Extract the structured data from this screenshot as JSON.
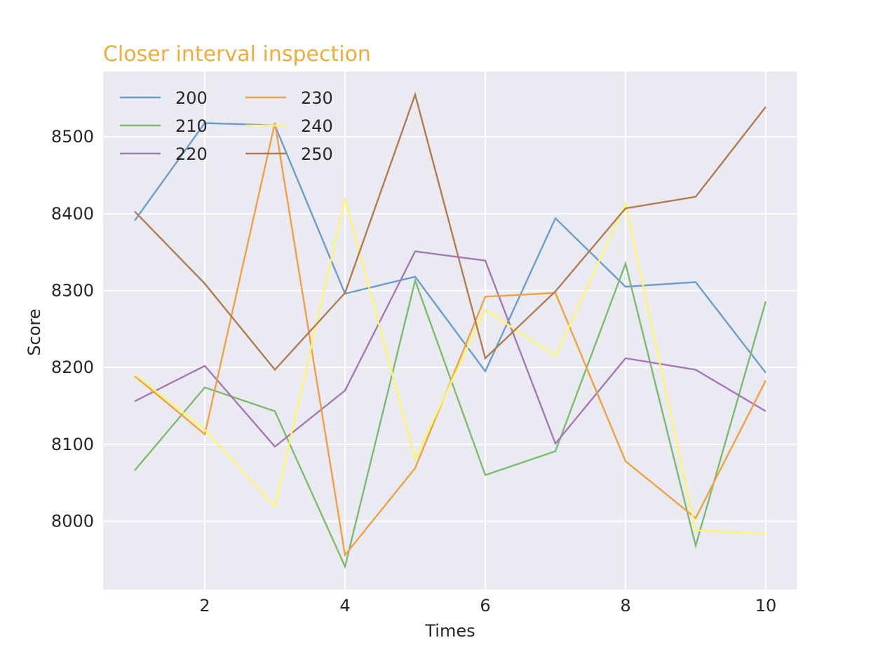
{
  "chart_data": {
    "type": "line",
    "title": "Closer interval inspection",
    "xlabel": "Times",
    "ylabel": "Score",
    "x": [
      1,
      2,
      3,
      4,
      5,
      6,
      7,
      8,
      9,
      10
    ],
    "xticks": [
      2,
      4,
      6,
      8,
      10
    ],
    "yticks": [
      8000,
      8100,
      8200,
      8300,
      8400,
      8500
    ],
    "xlim": [
      0.55,
      10.45
    ],
    "ylim": [
      7911,
      8585
    ],
    "grid": true,
    "legend": {
      "placement": "top-left",
      "columns": 2
    },
    "colors": {
      "title": "#f0ac38",
      "plot_background": "#eaeaf2",
      "grid": "#ffffff"
    },
    "series": [
      {
        "name": "200",
        "color": "#6a9ec8",
        "values": [
          8391,
          8518,
          8515,
          8296,
          8318,
          8195,
          8394,
          8305,
          8311,
          8193
        ]
      },
      {
        "name": "210",
        "color": "#7dbb6c",
        "values": [
          8066,
          8174,
          8143,
          7941,
          8313,
          8060,
          8091,
          8335,
          7968,
          8286
        ]
      },
      {
        "name": "220",
        "color": "#a676b6",
        "values": [
          8156,
          8202,
          8097,
          8170,
          8351,
          8339,
          8101,
          8212,
          8197,
          8143
        ]
      },
      {
        "name": "230",
        "color": "#f0a040",
        "values": [
          8189,
          8113,
          8518,
          7956,
          8069,
          8292,
          8297,
          8078,
          8004,
          8183
        ]
      },
      {
        "name": "240",
        "color": "#fdf56b",
        "values": [
          8191,
          8119,
          8019,
          8420,
          8081,
          8275,
          8215,
          8413,
          7988,
          7984
        ]
      },
      {
        "name": "250",
        "color": "#b37a50",
        "values": [
          8403,
          8309,
          8197,
          8297,
          8555,
          8212,
          8299,
          8407,
          8422,
          8539
        ]
      }
    ]
  }
}
